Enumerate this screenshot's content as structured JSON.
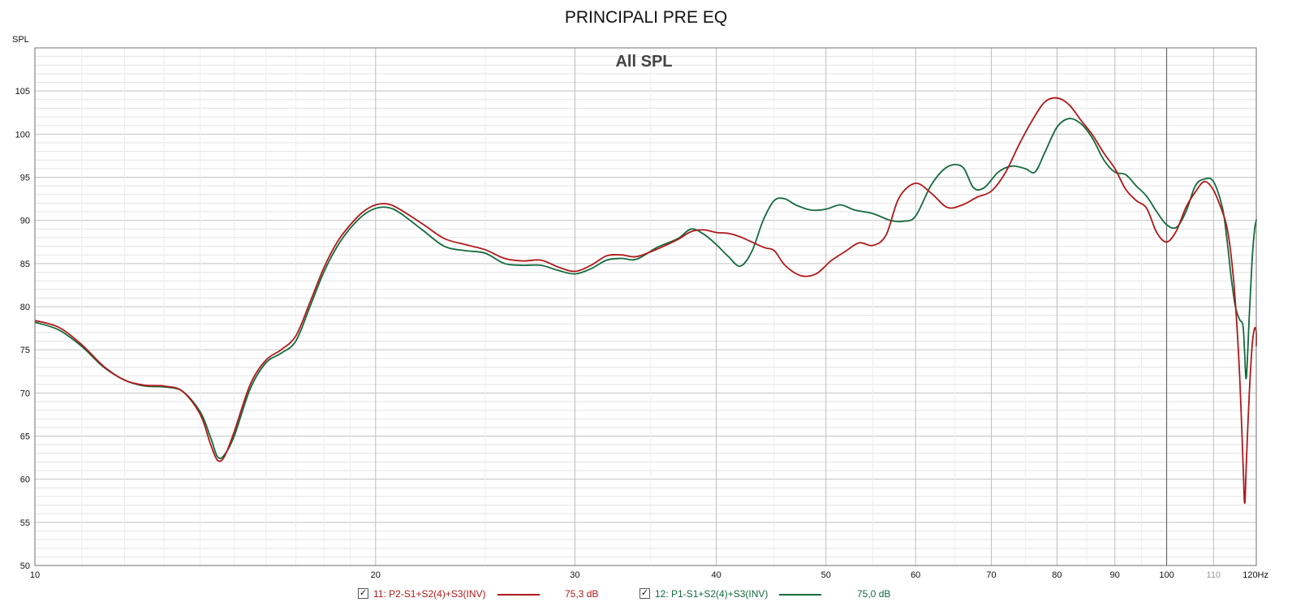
{
  "title": "PRINCIPALI PRE EQ",
  "chart_data": {
    "type": "line",
    "title": "PRINCIPALI PRE EQ",
    "subtitle": "All SPL",
    "ylabel": "SPL",
    "xunit": "Hz",
    "xscale": "log",
    "xlim": [
      10,
      120
    ],
    "ylim": [
      50,
      110
    ],
    "grid": true,
    "legend_position": "bottom",
    "x_ticks": [
      {
        "value": 10,
        "label": "10"
      },
      {
        "value": 20,
        "label": "20"
      },
      {
        "value": 30,
        "label": "30"
      },
      {
        "value": 40,
        "label": "40"
      },
      {
        "value": 50,
        "label": "50"
      },
      {
        "value": 60,
        "label": "60"
      },
      {
        "value": 70,
        "label": "70"
      },
      {
        "value": 80,
        "label": "80"
      },
      {
        "value": 90,
        "label": "90"
      },
      {
        "value": 100,
        "label": "100"
      },
      {
        "value": 110,
        "label": "110"
      },
      {
        "value": 120,
        "label": "120Hz"
      }
    ],
    "y_ticks": [
      50,
      55,
      60,
      65,
      70,
      75,
      80,
      85,
      90,
      95,
      100,
      105
    ],
    "series": [
      {
        "name": "11: P2-S1+S2(4)+S3(INV)",
        "level": "75,3 dB",
        "color": "#b01818",
        "checked": true,
        "points": [
          [
            10,
            78.4
          ],
          [
            10.5,
            77.6
          ],
          [
            11,
            75.6
          ],
          [
            11.5,
            73.1
          ],
          [
            12,
            71.5
          ],
          [
            12.5,
            70.9
          ],
          [
            13,
            70.8
          ],
          [
            13.5,
            70.2
          ],
          [
            14,
            67.5
          ],
          [
            14.3,
            64.0
          ],
          [
            14.5,
            62.2
          ],
          [
            14.7,
            62.6
          ],
          [
            15,
            65.5
          ],
          [
            15.5,
            71.0
          ],
          [
            16,
            73.8
          ],
          [
            16.5,
            75.0
          ],
          [
            17,
            76.6
          ],
          [
            17.5,
            80.5
          ],
          [
            18,
            84.5
          ],
          [
            18.5,
            87.5
          ],
          [
            19,
            89.5
          ],
          [
            19.5,
            91.0
          ],
          [
            20,
            91.8
          ],
          [
            20.5,
            91.9
          ],
          [
            21,
            91.3
          ],
          [
            22,
            89.6
          ],
          [
            23,
            87.9
          ],
          [
            24,
            87.2
          ],
          [
            25,
            86.6
          ],
          [
            26,
            85.6
          ],
          [
            27,
            85.3
          ],
          [
            28,
            85.4
          ],
          [
            29,
            84.6
          ],
          [
            30,
            84.1
          ],
          [
            31,
            84.8
          ],
          [
            32,
            85.9
          ],
          [
            33,
            86.0
          ],
          [
            34,
            85.8
          ],
          [
            35.5,
            86.7
          ],
          [
            37,
            87.8
          ],
          [
            38,
            88.7
          ],
          [
            39,
            88.9
          ],
          [
            40,
            88.6
          ],
          [
            41,
            88.5
          ],
          [
            42,
            88.1
          ],
          [
            44,
            86.9
          ],
          [
            45,
            86.5
          ],
          [
            46,
            84.8
          ],
          [
            47.5,
            83.6
          ],
          [
            49,
            83.8
          ],
          [
            50.5,
            85.3
          ],
          [
            52,
            86.4
          ],
          [
            53.5,
            87.4
          ],
          [
            55,
            87.1
          ],
          [
            56.5,
            88.3
          ],
          [
            58,
            92.6
          ],
          [
            60,
            94.3
          ],
          [
            62,
            93.1
          ],
          [
            64,
            91.5
          ],
          [
            66,
            91.8
          ],
          [
            68,
            92.7
          ],
          [
            70,
            93.4
          ],
          [
            72,
            95.5
          ],
          [
            74,
            98.7
          ],
          [
            76,
            101.5
          ],
          [
            78,
            103.7
          ],
          [
            80,
            104.2
          ],
          [
            82,
            103.4
          ],
          [
            84,
            101.6
          ],
          [
            86,
            99.9
          ],
          [
            88,
            97.8
          ],
          [
            90,
            96.0
          ],
          [
            92,
            93.6
          ],
          [
            94,
            92.3
          ],
          [
            96,
            91.4
          ],
          [
            98,
            88.6
          ],
          [
            100,
            87.5
          ],
          [
            102,
            88.8
          ],
          [
            104,
            91.5
          ],
          [
            106,
            93.3
          ],
          [
            108,
            94.5
          ],
          [
            110,
            93.5
          ],
          [
            112,
            91.0
          ],
          [
            113,
            89.3
          ],
          [
            114,
            86.0
          ],
          [
            115,
            80.5
          ],
          [
            116,
            72.0
          ],
          [
            116.8,
            62.0
          ],
          [
            117.2,
            57.2
          ],
          [
            117.6,
            62.0
          ],
          [
            118.3,
            70.0
          ],
          [
            119,
            75.5
          ],
          [
            119.6,
            77.5
          ],
          [
            120,
            77.0
          ],
          [
            120.5,
            75.4
          ]
        ]
      },
      {
        "name": "12: P1-S1+S2(4)+S3(INV)",
        "level": "75,0 dB",
        "color": "#136a3e",
        "checked": true,
        "points": [
          [
            10,
            78.2
          ],
          [
            10.5,
            77.3
          ],
          [
            11,
            75.4
          ],
          [
            11.5,
            73.0
          ],
          [
            12,
            71.5
          ],
          [
            12.5,
            70.8
          ],
          [
            13,
            70.7
          ],
          [
            13.5,
            70.2
          ],
          [
            14,
            67.8
          ],
          [
            14.3,
            64.8
          ],
          [
            14.5,
            62.6
          ],
          [
            14.7,
            62.8
          ],
          [
            15,
            65.0
          ],
          [
            15.5,
            70.5
          ],
          [
            16,
            73.5
          ],
          [
            16.5,
            74.6
          ],
          [
            17,
            76.0
          ],
          [
            17.5,
            80.0
          ],
          [
            18,
            84.0
          ],
          [
            18.5,
            87.0
          ],
          [
            19,
            89.1
          ],
          [
            19.5,
            90.6
          ],
          [
            20,
            91.4
          ],
          [
            20.5,
            91.5
          ],
          [
            21,
            90.9
          ],
          [
            22,
            88.9
          ],
          [
            23,
            87.0
          ],
          [
            24,
            86.5
          ],
          [
            25,
            86.2
          ],
          [
            26,
            85.0
          ],
          [
            27,
            84.8
          ],
          [
            28,
            84.8
          ],
          [
            29,
            84.2
          ],
          [
            30,
            83.8
          ],
          [
            31,
            84.4
          ],
          [
            32,
            85.4
          ],
          [
            33,
            85.6
          ],
          [
            34,
            85.5
          ],
          [
            35.5,
            86.9
          ],
          [
            37,
            87.9
          ],
          [
            38,
            89.0
          ],
          [
            39,
            88.4
          ],
          [
            40,
            87.2
          ],
          [
            41,
            85.8
          ],
          [
            42,
            84.7
          ],
          [
            43,
            86.4
          ],
          [
            44,
            90.0
          ],
          [
            45,
            92.3
          ],
          [
            46,
            92.5
          ],
          [
            47,
            91.8
          ],
          [
            48.5,
            91.2
          ],
          [
            50,
            91.3
          ],
          [
            51.5,
            91.8
          ],
          [
            53,
            91.2
          ],
          [
            55,
            90.8
          ],
          [
            57,
            90.0
          ],
          [
            58.5,
            89.9
          ],
          [
            60,
            90.5
          ],
          [
            62,
            94.2
          ],
          [
            64,
            96.2
          ],
          [
            66,
            96.2
          ],
          [
            67.5,
            93.8
          ],
          [
            69,
            93.8
          ],
          [
            71,
            95.6
          ],
          [
            73,
            96.3
          ],
          [
            75,
            96.0
          ],
          [
            76.5,
            95.6
          ],
          [
            78,
            97.8
          ],
          [
            80,
            100.8
          ],
          [
            82,
            101.8
          ],
          [
            84,
            101.2
          ],
          [
            86,
            99.5
          ],
          [
            88,
            97.0
          ],
          [
            90,
            95.6
          ],
          [
            92,
            95.3
          ],
          [
            94,
            94.0
          ],
          [
            96,
            92.8
          ],
          [
            98,
            91.0
          ],
          [
            100,
            89.5
          ],
          [
            102,
            89.2
          ],
          [
            104,
            91.0
          ],
          [
            106,
            94.0
          ],
          [
            108,
            94.8
          ],
          [
            110,
            94.5
          ],
          [
            112,
            91.5
          ],
          [
            113,
            88.0
          ],
          [
            114,
            83.5
          ],
          [
            115,
            80.0
          ],
          [
            116,
            78.5
          ],
          [
            116.8,
            77.8
          ],
          [
            117.2,
            74.5
          ],
          [
            117.6,
            71.8
          ],
          [
            118.3,
            79.0
          ],
          [
            119,
            85.5
          ],
          [
            119.6,
            89.0
          ],
          [
            120,
            90.0
          ],
          [
            120.5,
            90.1
          ]
        ]
      }
    ]
  }
}
